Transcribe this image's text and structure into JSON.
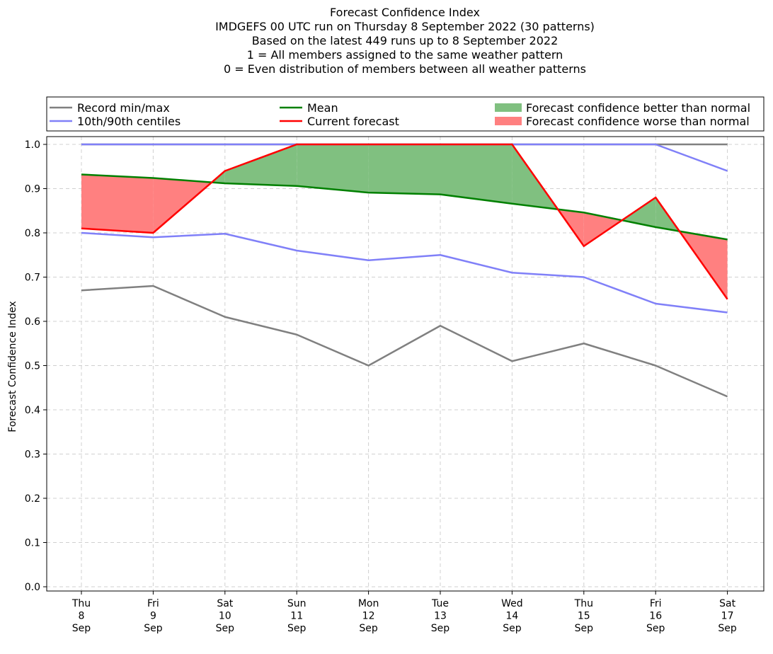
{
  "chart_data": {
    "type": "line",
    "title_lines": [
      "Forecast Confidence Index",
      "IMDGEFS 00 UTC run on Thursday 8 September 2022 (30 patterns)",
      "Based on the latest 449 runs up to 8 September 2022",
      "1 = All members assigned to the same weather pattern",
      "0 = Even distribution of members between all weather patterns"
    ],
    "ylabel": "Forecast Confidence Index",
    "ylim": [
      0,
      1
    ],
    "yticks": [
      "0.0",
      "0.1",
      "0.2",
      "0.3",
      "0.4",
      "0.5",
      "0.6",
      "0.7",
      "0.8",
      "0.9",
      "1.0"
    ],
    "categories": [
      [
        "Thu",
        "8",
        "Sep"
      ],
      [
        "Fri",
        "9",
        "Sep"
      ],
      [
        "Sat",
        "10",
        "Sep"
      ],
      [
        "Sun",
        "11",
        "Sep"
      ],
      [
        "Mon",
        "12",
        "Sep"
      ],
      [
        "Tue",
        "13",
        "Sep"
      ],
      [
        "Wed",
        "14",
        "Sep"
      ],
      [
        "Thu",
        "15",
        "Sep"
      ],
      [
        "Fri",
        "16",
        "Sep"
      ],
      [
        "Sat",
        "17",
        "Sep"
      ]
    ],
    "grid": true,
    "legend_position": "top",
    "series": [
      {
        "key": "record_min",
        "name": "Record min/max",
        "color": "#808080",
        "values": [
          0.67,
          0.68,
          0.61,
          0.57,
          0.5,
          0.59,
          0.51,
          0.55,
          0.5,
          0.43
        ]
      },
      {
        "key": "record_max",
        "name": "Record min/max",
        "color": "#808080",
        "values": [
          1.0,
          1.0,
          1.0,
          1.0,
          1.0,
          1.0,
          1.0,
          1.0,
          1.0,
          1.0
        ]
      },
      {
        "key": "p10",
        "name": "10th/90th centiles",
        "color": "#8080f8",
        "values": [
          0.8,
          0.79,
          0.798,
          0.76,
          0.738,
          0.75,
          0.71,
          0.7,
          0.64,
          0.62
        ]
      },
      {
        "key": "p90",
        "name": "10th/90th centiles",
        "color": "#8080f8",
        "values": [
          1.0,
          1.0,
          1.0,
          1.0,
          1.0,
          1.0,
          1.0,
          1.0,
          1.0,
          0.94
        ]
      },
      {
        "key": "mean",
        "name": "Mean",
        "color": "#008000",
        "values": [
          0.932,
          0.924,
          0.912,
          0.906,
          0.891,
          0.887,
          0.866,
          0.846,
          0.813,
          0.785
        ]
      },
      {
        "key": "current",
        "name": "Current forecast",
        "color": "#ff0000",
        "values": [
          0.81,
          0.8,
          0.94,
          1.0,
          1.0,
          1.0,
          1.0,
          0.77,
          0.88,
          0.65
        ]
      }
    ],
    "fills": [
      {
        "name": "Forecast confidence better than normal",
        "color": "#80c080"
      },
      {
        "name": "Forecast confidence worse than normal",
        "color": "#ff8080"
      }
    ]
  }
}
